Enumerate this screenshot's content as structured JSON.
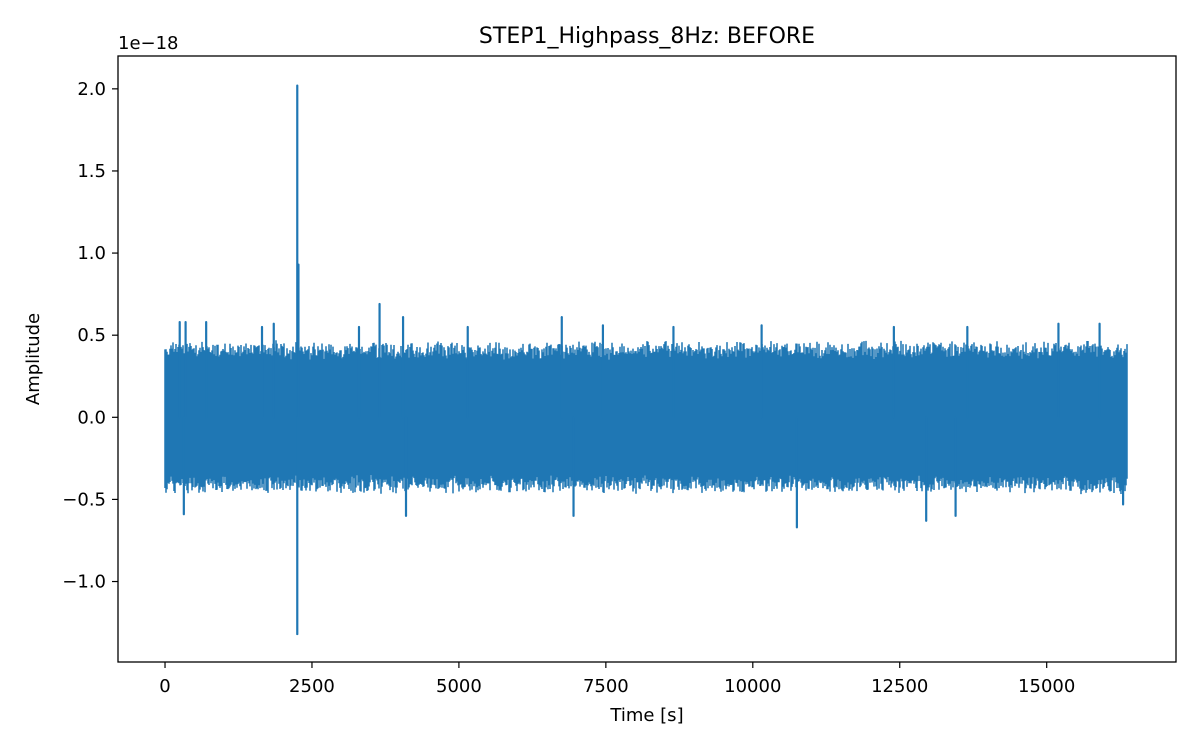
{
  "chart_data": {
    "type": "line",
    "title": "STEP1_Highpass_8Hz: BEFORE",
    "xlabel": "Time [s]",
    "ylabel": "Amplitude",
    "offset_label": "1e−18",
    "xlim": [
      -800,
      17200
    ],
    "ylim": [
      -1.49,
      2.2
    ],
    "scale_exponent": -18,
    "grid": false,
    "legend": "none",
    "x_ticks": [
      0,
      2500,
      5000,
      7500,
      10000,
      12500,
      15000
    ],
    "x_tick_labels": [
      "0",
      "2500",
      "5000",
      "7500",
      "10000",
      "12500",
      "15000"
    ],
    "y_ticks": [
      -1.0,
      -0.5,
      0.0,
      0.5,
      1.0,
      1.5,
      2.0
    ],
    "y_tick_labels": [
      "−1.0",
      "−0.5",
      "0.0",
      "0.5",
      "1.0",
      "1.5",
      "2.0"
    ],
    "series": [
      {
        "color": "#1f77b4",
        "x_range": [
          0,
          16380
        ],
        "noise_envelope_typical": [
          -0.45,
          0.45
        ],
        "spikes": [
          {
            "x": 2250,
            "y": 2.02
          },
          {
            "x": 2250,
            "y": -1.32
          },
          {
            "x": 2270,
            "y": 0.93
          },
          {
            "x": 250,
            "y": 0.58
          },
          {
            "x": 350,
            "y": 0.58
          },
          {
            "x": 700,
            "y": 0.58
          },
          {
            "x": 1650,
            "y": 0.55
          },
          {
            "x": 1850,
            "y": 0.57
          },
          {
            "x": 3300,
            "y": 0.55
          },
          {
            "x": 3650,
            "y": 0.69
          },
          {
            "x": 4050,
            "y": 0.61
          },
          {
            "x": 5150,
            "y": 0.55
          },
          {
            "x": 6750,
            "y": 0.61
          },
          {
            "x": 7450,
            "y": 0.56
          },
          {
            "x": 8650,
            "y": 0.55
          },
          {
            "x": 10150,
            "y": 0.56
          },
          {
            "x": 12400,
            "y": 0.55
          },
          {
            "x": 13650,
            "y": 0.55
          },
          {
            "x": 15200,
            "y": 0.57
          },
          {
            "x": 15900,
            "y": 0.57
          },
          {
            "x": 320,
            "y": -0.59
          },
          {
            "x": 4100,
            "y": -0.6
          },
          {
            "x": 6950,
            "y": -0.6
          },
          {
            "x": 10750,
            "y": -0.67
          },
          {
            "x": 12950,
            "y": -0.63
          },
          {
            "x": 13450,
            "y": -0.6
          },
          {
            "x": 16300,
            "y": -0.53
          }
        ]
      }
    ]
  }
}
